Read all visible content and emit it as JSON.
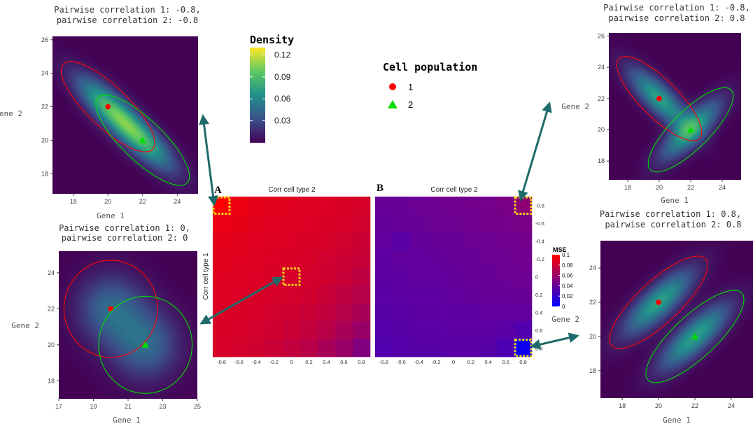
{
  "colors": {
    "density_low": "#440154",
    "density_mid": "#21918c",
    "density_high": "#fde725",
    "pop1": "#ff0000",
    "pop2": "#00dd00",
    "arrow": "#1f6b6b",
    "highlight": "#f2d21b",
    "mse_low": "#0000ff",
    "mse_high": "#ff0000"
  },
  "legends": {
    "density": {
      "title": "Density",
      "ticks": [
        "0.12",
        "0.09",
        "0.06",
        "0.03"
      ],
      "values": [
        0.12,
        0.09,
        0.06,
        0.03
      ],
      "max": 0.13,
      "min": 0.0
    },
    "population": {
      "title": "Cell population",
      "items": [
        "1",
        "2"
      ],
      "markers": [
        "circle",
        "triangle"
      ]
    },
    "mse": {
      "title": "MSE",
      "ticks": [
        "0.1",
        "0.08",
        "0.06",
        "0.04",
        "0.02",
        "0"
      ],
      "values": [
        0.1,
        0.08,
        0.06,
        0.04,
        0.02,
        0.0
      ]
    }
  },
  "chart_data": [
    {
      "id": "top_left",
      "type": "heatmap",
      "title": [
        "Pairwise correlation 1: -0.8,",
        "pairwise correlation 2: -0.8"
      ],
      "xlabel": "Gene 1",
      "ylabel": "Gene 2",
      "xlim": [
        16.8,
        25.2
      ],
      "ylim": [
        16.8,
        26.2
      ],
      "xticks": [
        "18",
        "20",
        "22",
        "24"
      ],
      "xtick_values": [
        18,
        20,
        22,
        24
      ],
      "yticks": [
        "18",
        "20",
        "22",
        "24",
        "26"
      ],
      "ytick_values": [
        18,
        20,
        22,
        24,
        26
      ],
      "corr": [
        -0.8,
        -0.8
      ],
      "means": [
        [
          20,
          22
        ],
        [
          22,
          20
        ]
      ],
      "sd": [
        1.35,
        1.35
      ]
    },
    {
      "id": "top_right",
      "type": "heatmap",
      "title": [
        "Pairwise correlation 1: -0.8,",
        "pairwise correlation 2: 0.8"
      ],
      "xlabel": "Gene 1",
      "ylabel": "Gene 2",
      "xlim": [
        16.8,
        25.2
      ],
      "ylim": [
        16.8,
        26.2
      ],
      "xticks": [
        "18",
        "20",
        "22",
        "24"
      ],
      "xtick_values": [
        18,
        20,
        22,
        24
      ],
      "yticks": [
        "18",
        "20",
        "22",
        "24",
        "26"
      ],
      "ytick_values": [
        18,
        20,
        22,
        24,
        26
      ],
      "corr": [
        -0.8,
        0.8
      ],
      "means": [
        [
          20,
          22
        ],
        [
          22,
          20
        ]
      ],
      "sd": [
        1.35,
        1.35
      ]
    },
    {
      "id": "bottom_left",
      "type": "heatmap",
      "title": [
        "Pairwise correlation 1: 0,",
        "pairwise correlation 2: 0"
      ],
      "xlabel": "Gene 1",
      "ylabel": "Gene 2",
      "xlim": [
        17,
        25
      ],
      "ylim": [
        17,
        25.2
      ],
      "xticks": [
        "17",
        "19",
        "21",
        "23",
        "25"
      ],
      "xtick_values": [
        17,
        19,
        21,
        23,
        25
      ],
      "yticks": [
        "18",
        "20",
        "22",
        "24"
      ],
      "ytick_values": [
        18,
        20,
        22,
        24
      ],
      "corr": [
        0,
        0
      ],
      "means": [
        [
          20,
          22
        ],
        [
          22,
          20
        ]
      ],
      "sd": [
        1.35,
        1.35
      ]
    },
    {
      "id": "bottom_right",
      "type": "heatmap",
      "title": [
        "Pairwise correlation 1: 0.8,",
        "pairwise correlation 2: 0.8"
      ],
      "xlabel": "Gene 1",
      "ylabel": "Gene 2",
      "xlim": [
        16.8,
        25.2
      ],
      "ylim": [
        16.4,
        25.6
      ],
      "xticks": [
        "18",
        "20",
        "22",
        "24"
      ],
      "xtick_values": [
        18,
        20,
        22,
        24
      ],
      "yticks": [
        "18",
        "20",
        "22",
        "24"
      ],
      "ytick_values": [
        18,
        20,
        22,
        24
      ],
      "corr": [
        0.8,
        0.8
      ],
      "means": [
        [
          20,
          22
        ],
        [
          22,
          20
        ]
      ],
      "sd": [
        1.35,
        1.35
      ]
    },
    {
      "id": "A",
      "type": "heatmap",
      "panel_label": "A",
      "title": "Corr cell type 2",
      "ylabel": "Corr cell type 1",
      "xticks": [
        "-0.8",
        "-0.6",
        "-0.4",
        "-0.2",
        "0",
        "0.2",
        "0.4",
        "0.6",
        "0.8"
      ],
      "values": [
        [
          0.1,
          0.093,
          0.09,
          0.089,
          0.088,
          0.087,
          0.086,
          0.085,
          0.084
        ],
        [
          0.092,
          0.091,
          0.089,
          0.088,
          0.087,
          0.086,
          0.085,
          0.084,
          0.082
        ],
        [
          0.09,
          0.089,
          0.088,
          0.087,
          0.086,
          0.085,
          0.084,
          0.082,
          0.08
        ],
        [
          0.089,
          0.088,
          0.087,
          0.086,
          0.085,
          0.084,
          0.082,
          0.08,
          0.078
        ],
        [
          0.088,
          0.087,
          0.086,
          0.085,
          0.084,
          0.083,
          0.081,
          0.078,
          0.075
        ],
        [
          0.087,
          0.086,
          0.085,
          0.084,
          0.083,
          0.081,
          0.079,
          0.075,
          0.071
        ],
        [
          0.086,
          0.085,
          0.084,
          0.082,
          0.081,
          0.079,
          0.076,
          0.071,
          0.066
        ],
        [
          0.085,
          0.084,
          0.083,
          0.081,
          0.079,
          0.076,
          0.072,
          0.066,
          0.06
        ],
        [
          0.084,
          0.083,
          0.081,
          0.079,
          0.076,
          0.072,
          0.066,
          0.06,
          0.05
        ]
      ],
      "highlight_cells": [
        [
          0,
          0
        ],
        [
          4,
          4
        ]
      ]
    },
    {
      "id": "B",
      "type": "heatmap",
      "panel_label": "B",
      "title": "Corr cell type 2",
      "xticks": [
        "-0.8",
        "-0.6",
        "-0.4",
        "-0.2",
        "0",
        "0.2",
        "0.4",
        "0.6",
        "0.8"
      ],
      "yticks": [
        "-0.8",
        "-0.6",
        "-0.4",
        "-0.2",
        "0",
        "0.2",
        "0.4",
        "0.6",
        "0.8"
      ],
      "values": [
        [
          0.04,
          0.041,
          0.042,
          0.043,
          0.044,
          0.045,
          0.046,
          0.047,
          0.055
        ],
        [
          0.039,
          0.04,
          0.041,
          0.042,
          0.043,
          0.044,
          0.045,
          0.046,
          0.047
        ],
        [
          0.038,
          0.035,
          0.039,
          0.04,
          0.041,
          0.042,
          0.043,
          0.044,
          0.045
        ],
        [
          0.037,
          0.038,
          0.038,
          0.039,
          0.04,
          0.041,
          0.042,
          0.043,
          0.044
        ],
        [
          0.036,
          0.037,
          0.038,
          0.038,
          0.039,
          0.04,
          0.041,
          0.042,
          0.043
        ],
        [
          0.035,
          0.036,
          0.037,
          0.037,
          0.038,
          0.039,
          0.04,
          0.04,
          0.041
        ],
        [
          0.034,
          0.035,
          0.036,
          0.036,
          0.037,
          0.037,
          0.038,
          0.038,
          0.038
        ],
        [
          0.033,
          0.034,
          0.035,
          0.035,
          0.036,
          0.036,
          0.036,
          0.035,
          0.032
        ],
        [
          0.032,
          0.033,
          0.034,
          0.034,
          0.035,
          0.035,
          0.034,
          0.03,
          0.005
        ]
      ],
      "highlight_cells": [
        [
          0,
          8
        ],
        [
          8,
          8
        ]
      ]
    }
  ]
}
